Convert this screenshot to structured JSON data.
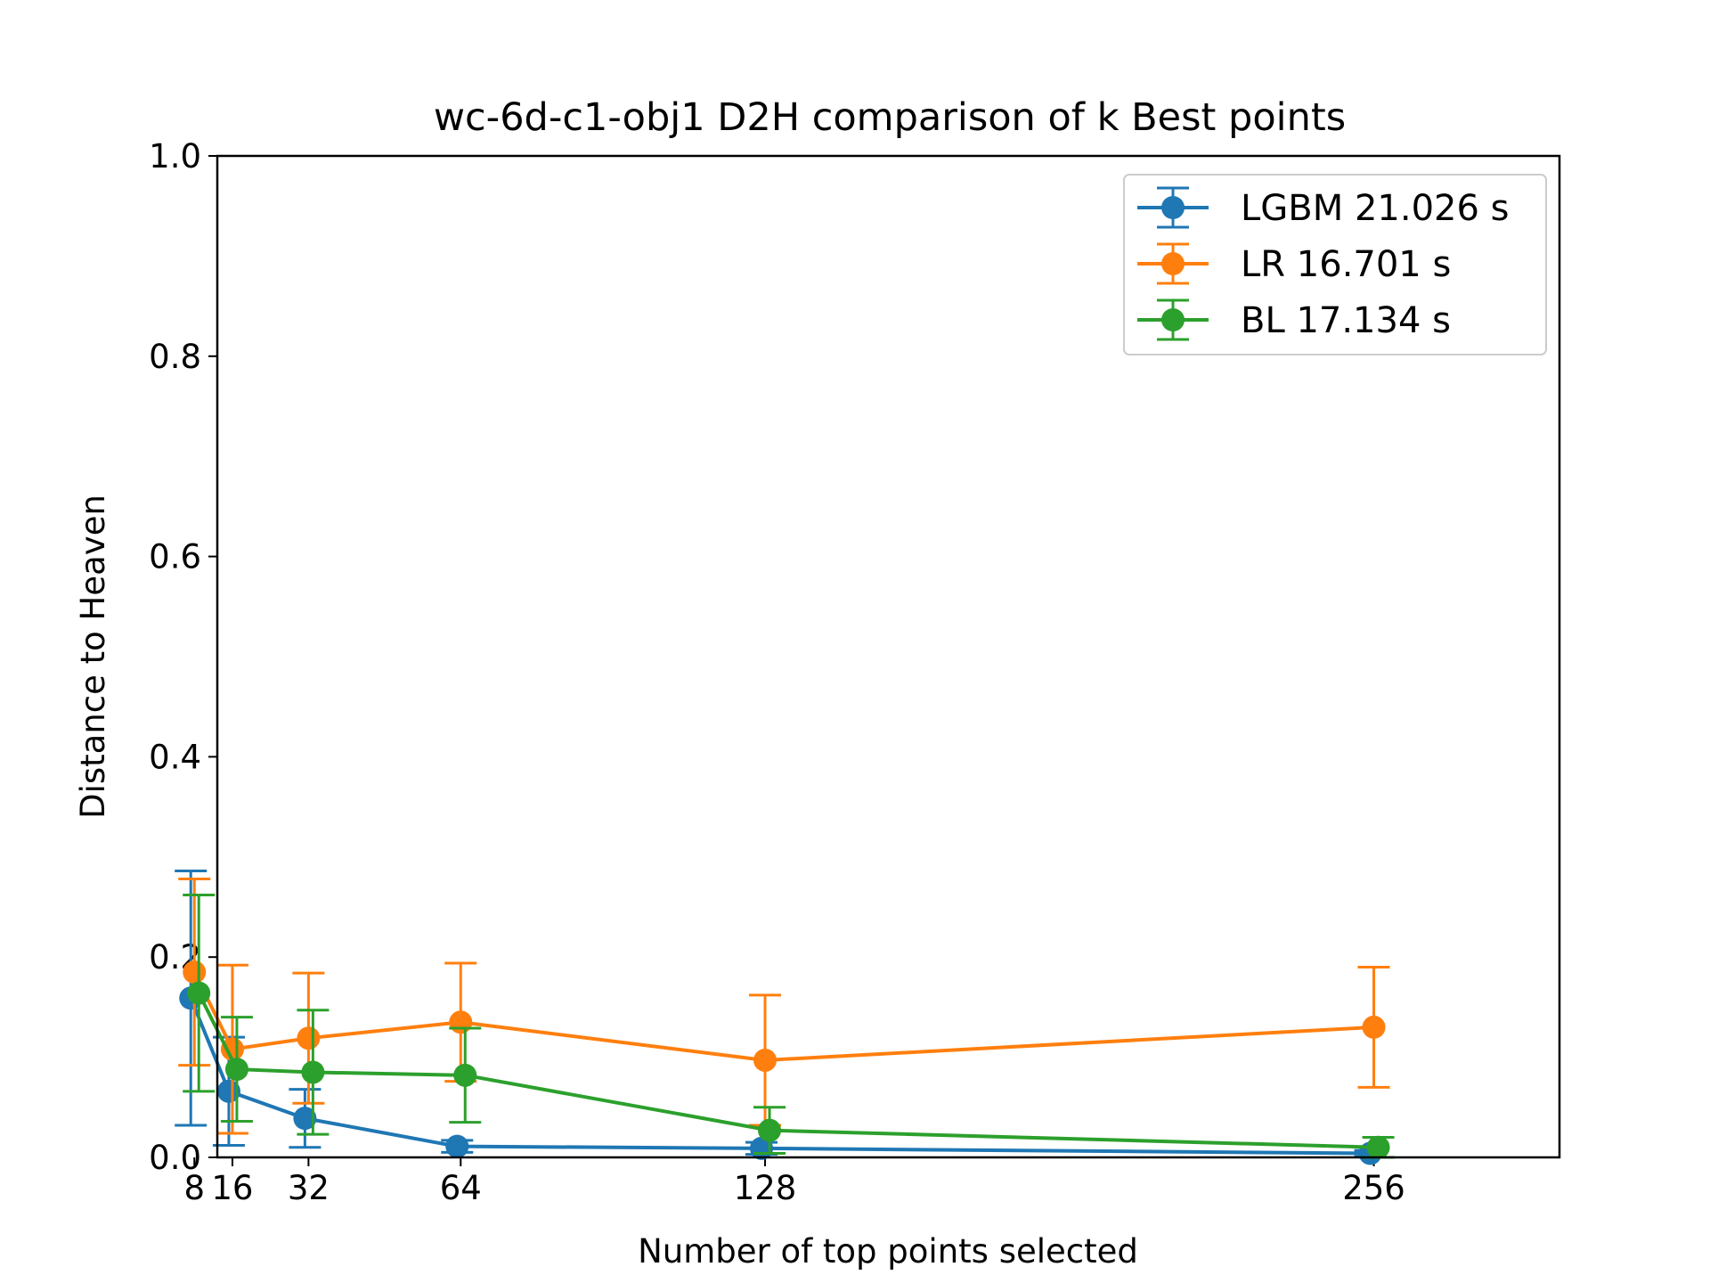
{
  "chart_data": {
    "type": "line",
    "title": "wc-6d-c1-obj1 D2H comparison of k Best points",
    "xlabel": "Number of top points selected",
    "ylabel": "Distance to Heaven",
    "xlim": [
      0,
      270
    ],
    "ylim": [
      0,
      1
    ],
    "xticks": [
      8,
      16,
      32,
      64,
      128,
      256
    ],
    "yticks": [
      0.0,
      0.2,
      0.4,
      0.6,
      0.8,
      1.0
    ],
    "ytick_labels": [
      "0.0",
      "0.2",
      "0.4",
      "0.6",
      "0.8",
      "1.0"
    ],
    "grid": false,
    "legend_position": "top-right",
    "error_bars": true,
    "series": [
      {
        "name": "LGBM 21.026 s",
        "color": "#1f77b4",
        "x": [
          8,
          16,
          32,
          64,
          128,
          256
        ],
        "y": [
          0.159,
          0.066,
          0.039,
          0.011,
          0.009,
          0.004
        ],
        "yerr": [
          0.127,
          0.054,
          0.029,
          0.006,
          0.006,
          0.003
        ]
      },
      {
        "name": "LR 16.701 s",
        "color": "#ff7f0e",
        "x": [
          8,
          16,
          32,
          64,
          128,
          256
        ],
        "y": [
          0.185,
          0.108,
          0.119,
          0.135,
          0.097,
          0.13
        ],
        "yerr": [
          0.093,
          0.084,
          0.065,
          0.059,
          0.065,
          0.06
        ]
      },
      {
        "name": "BL 17.134 s",
        "color": "#2ca02c",
        "x": [
          8,
          16,
          32,
          64,
          128,
          256
        ],
        "y": [
          0.164,
          0.088,
          0.085,
          0.082,
          0.027,
          0.01
        ],
        "yerr": [
          0.098,
          0.052,
          0.062,
          0.047,
          0.023,
          0.01
        ]
      }
    ]
  }
}
